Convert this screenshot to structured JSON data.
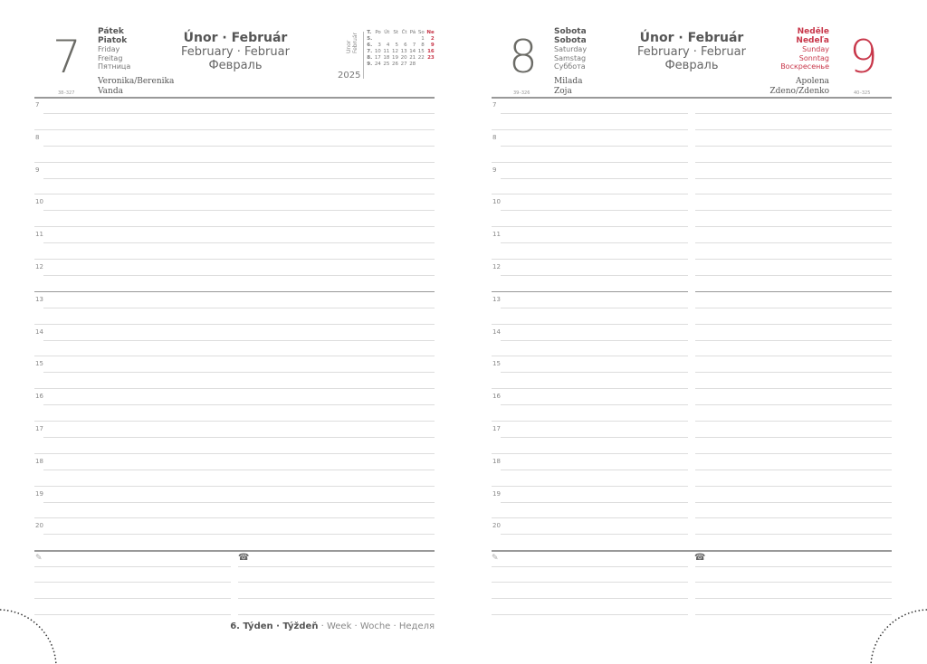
{
  "left_page": {
    "day_number": "7",
    "weekday": [
      "Pátek",
      "Piatok",
      "Friday",
      "Freitag",
      "Пятница"
    ],
    "month": {
      "title": "Únor · Február",
      "line2": "February · Februar",
      "line3": "Февраль"
    },
    "name_days": [
      "Veronika/Berenika",
      "Vanda"
    ],
    "day_of_year": "38–327",
    "year": "2025",
    "mini_month_label": [
      "Únor",
      "Február"
    ],
    "mini_calendar": {
      "header": [
        "T.",
        "Po",
        "Út",
        "St",
        "Čt",
        "Pá",
        "So",
        "Ne"
      ],
      "rows": [
        [
          "5.",
          "",
          "",
          "",
          "",
          "",
          "1",
          "2"
        ],
        [
          "6.",
          "3",
          "4",
          "5",
          "6",
          "7",
          "8",
          "9"
        ],
        [
          "7.",
          "10",
          "11",
          "12",
          "13",
          "14",
          "15",
          "16"
        ],
        [
          "8.",
          "17",
          "18",
          "19",
          "20",
          "21",
          "22",
          "23"
        ],
        [
          "9.",
          "24",
          "25",
          "26",
          "27",
          "28",
          "",
          ""
        ]
      ]
    },
    "week_label": {
      "bold": "6. Týden · Týždeň",
      "rest": " · Week · Woche · Неделя"
    }
  },
  "right_page": {
    "saturday": {
      "day_number": "8",
      "weekday": [
        "Sobota",
        "Sobota",
        "Saturday",
        "Samstag",
        "Суббота"
      ],
      "name_days": [
        "Milada",
        "Zoja"
      ],
      "day_of_year": "39–326"
    },
    "sunday": {
      "day_number": "9",
      "weekday": [
        "Neděle",
        "Nedeľa",
        "Sunday",
        "Sonntag",
        "Воскресенье"
      ],
      "name_days": [
        "Apolena",
        "Zdeno/Zdenko"
      ],
      "day_of_year": "40–325"
    },
    "month": {
      "title": "Únor · Február",
      "line2": "February · Februar",
      "line3": "Февраль"
    }
  },
  "hours": [
    "7",
    "8",
    "9",
    "10",
    "11",
    "12",
    "13",
    "14",
    "15",
    "16",
    "17",
    "18",
    "19",
    "20"
  ],
  "icons": {
    "notes": "pencil-icon",
    "phone": "phone-icon"
  },
  "colors": {
    "accent": "#c8374a",
    "text": "#666666"
  }
}
